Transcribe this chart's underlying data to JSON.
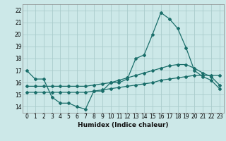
{
  "xlabel": "Humidex (Indice chaleur)",
  "bg_color": "#cce8e8",
  "grid_color": "#aacccc",
  "line_color": "#1a6e6a",
  "xlim": [
    -0.5,
    23.5
  ],
  "ylim": [
    13.5,
    22.5
  ],
  "xticks": [
    0,
    1,
    2,
    3,
    4,
    5,
    6,
    7,
    8,
    9,
    10,
    11,
    12,
    13,
    14,
    15,
    16,
    17,
    18,
    19,
    20,
    21,
    22,
    23
  ],
  "yticks": [
    14,
    15,
    16,
    17,
    18,
    19,
    20,
    21,
    22
  ],
  "line1_x": [
    0,
    1,
    2,
    3,
    4,
    5,
    6,
    7,
    8,
    9,
    10,
    11,
    12,
    13,
    14,
    15,
    16,
    17,
    18,
    19,
    20,
    21,
    22,
    23
  ],
  "line1_y": [
    17.0,
    16.3,
    16.3,
    14.8,
    14.3,
    14.3,
    14.0,
    13.8,
    15.3,
    15.3,
    16.0,
    16.0,
    16.3,
    18.0,
    18.3,
    20.0,
    21.8,
    21.3,
    20.5,
    18.9,
    17.0,
    16.5,
    16.2,
    15.5
  ],
  "line2_x": [
    0,
    1,
    2,
    3,
    4,
    5,
    6,
    7,
    8,
    9,
    10,
    11,
    12,
    13,
    14,
    15,
    16,
    17,
    18,
    19,
    20,
    21,
    22,
    23
  ],
  "line2_y": [
    15.2,
    15.2,
    15.2,
    15.2,
    15.2,
    15.2,
    15.2,
    15.2,
    15.3,
    15.4,
    15.5,
    15.6,
    15.7,
    15.8,
    15.9,
    16.0,
    16.2,
    16.3,
    16.4,
    16.5,
    16.6,
    16.6,
    16.6,
    16.6
  ],
  "line3_x": [
    0,
    1,
    2,
    3,
    4,
    5,
    6,
    7,
    8,
    9,
    10,
    11,
    12,
    13,
    14,
    15,
    16,
    17,
    18,
    19,
    20,
    21,
    22,
    23
  ],
  "line3_y": [
    15.7,
    15.7,
    15.7,
    15.7,
    15.7,
    15.7,
    15.7,
    15.7,
    15.8,
    15.9,
    16.0,
    16.2,
    16.4,
    16.6,
    16.8,
    17.0,
    17.2,
    17.4,
    17.5,
    17.5,
    17.2,
    16.8,
    16.5,
    15.8
  ],
  "xlabel_fontsize": 6.5,
  "tick_fontsize": 5.5
}
